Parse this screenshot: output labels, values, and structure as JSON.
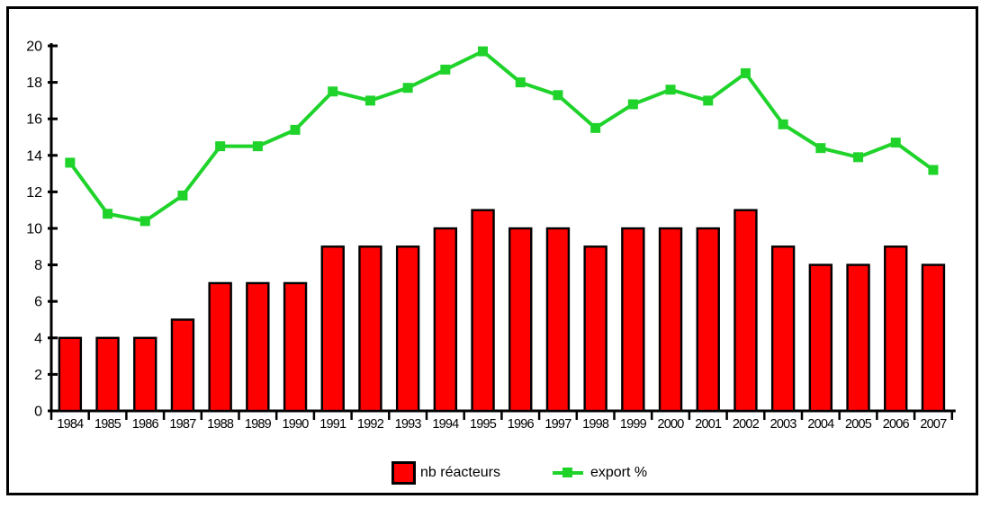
{
  "chart_data": {
    "type": "bar+line combo",
    "categories": [
      "1984",
      "1985",
      "1986",
      "1987",
      "1988",
      "1989",
      "1990",
      "1991",
      "1992",
      "1993",
      "1994",
      "1995",
      "1996",
      "1997",
      "1998",
      "1999",
      "2000",
      "2001",
      "2002",
      "2003",
      "2004",
      "2005",
      "2006",
      "2007"
    ],
    "series": [
      {
        "name": "nb réacteurs",
        "type": "bar",
        "values": [
          4,
          4,
          4,
          5,
          7,
          7,
          7,
          9,
          9,
          9,
          10,
          11,
          10,
          10,
          9,
          10,
          10,
          10,
          11,
          9,
          8,
          8,
          9,
          8
        ]
      },
      {
        "name": "export %",
        "type": "line",
        "values": [
          13.6,
          10.8,
          10.4,
          11.8,
          14.5,
          14.5,
          15.4,
          17.5,
          17.0,
          17.7,
          18.7,
          19.7,
          18.0,
          17.3,
          15.5,
          16.8,
          17.6,
          17.0,
          18.5,
          15.7,
          14.4,
          13.9,
          14.7,
          13.2
        ]
      }
    ],
    "title": "",
    "xlabel": "",
    "ylabel": "",
    "ylim": [
      0,
      20
    ],
    "y_tick_step": 2,
    "y_tick_labels": [
      "0",
      "2",
      "4",
      "6",
      "8",
      "10",
      "12",
      "14",
      "16",
      "18",
      "20"
    ],
    "grid": false,
    "legend_position": "bottom-center"
  },
  "legend": {
    "bars_label": "nb réacteurs",
    "line_label": "export %"
  },
  "colors": {
    "bar_fill": "#FE0000",
    "bar_border": "#000000",
    "line": "#1FD32B",
    "axis": "#000000",
    "background": "#FFFFFF",
    "frame_border": "#000000"
  }
}
